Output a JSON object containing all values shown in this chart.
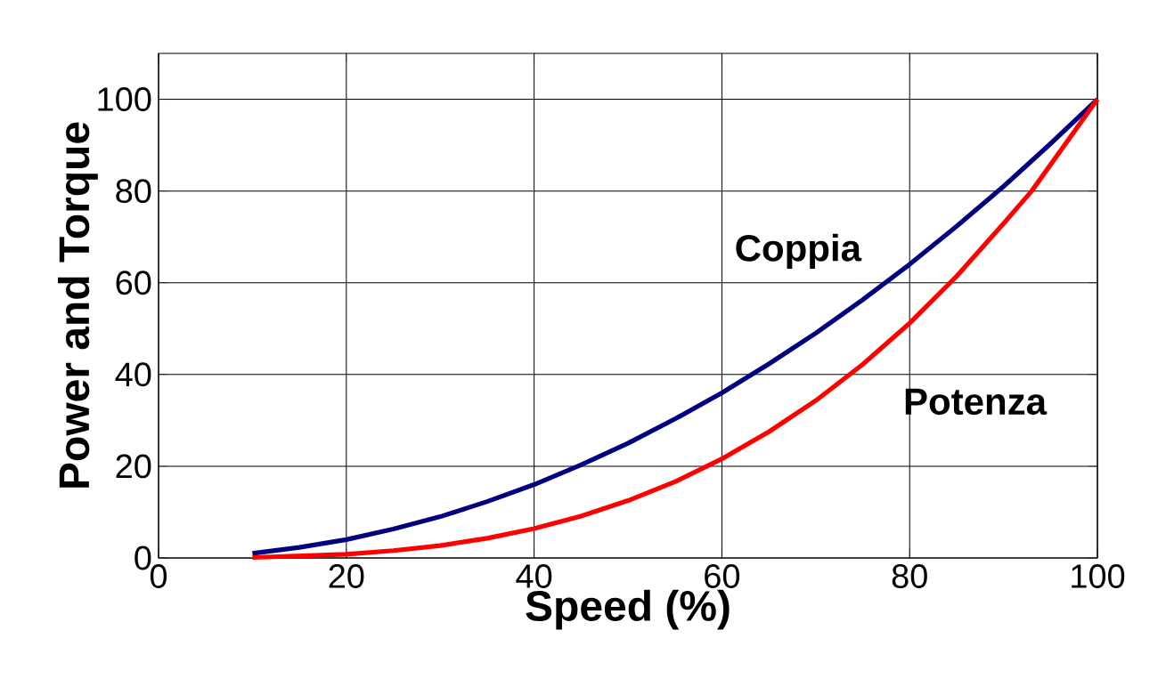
{
  "chart_data": {
    "type": "line",
    "xlabel": "Speed (%)",
    "ylabel": "Power and Torque",
    "xlim": [
      0,
      100
    ],
    "ylim": [
      0,
      110
    ],
    "xticks": [
      0,
      20,
      40,
      60,
      80,
      100
    ],
    "yticks": [
      0,
      20,
      40,
      60,
      80,
      100
    ],
    "grid": true,
    "marker": "none",
    "line_style": "solid",
    "series": [
      {
        "name": "Coppia",
        "color": "#000080",
        "x": [
          10,
          15,
          20,
          25,
          30,
          35,
          40,
          45,
          50,
          55,
          60,
          65,
          70,
          75,
          80,
          85,
          90,
          95,
          100
        ],
        "values": [
          1,
          2.3,
          4,
          6.3,
          9,
          12.3,
          16,
          20.3,
          25,
          30.3,
          36,
          42.3,
          49,
          56.3,
          64,
          72.3,
          81,
          90.3,
          100
        ]
      },
      {
        "name": "Potenza",
        "color": "#ff0000",
        "x": [
          10,
          20,
          25,
          30,
          35,
          40,
          45,
          50,
          55,
          60,
          65,
          70,
          75,
          80,
          85,
          90,
          93,
          100
        ],
        "values": [
          0.1,
          0.8,
          1.6,
          2.7,
          4.3,
          6.4,
          9.1,
          12.5,
          16.6,
          21.6,
          27.5,
          34.3,
          42.2,
          51.2,
          61.4,
          72.9,
          80,
          100
        ]
      }
    ]
  }
}
